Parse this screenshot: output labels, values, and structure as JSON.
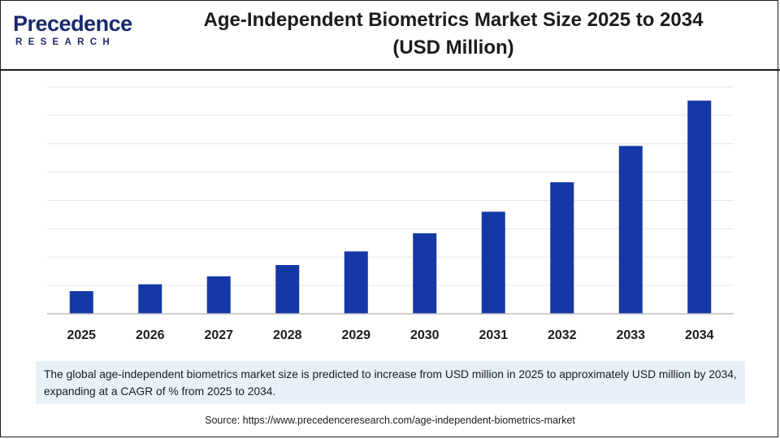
{
  "header": {
    "logo_text": "Precedence",
    "logo_subtext": "RESEARCH",
    "title_line1": "Age-Independent Biometrics Market Size 2025 to 2034",
    "title_line2": "(USD Million)"
  },
  "chart_data": {
    "type": "bar",
    "categories": [
      "2025",
      "2026",
      "2027",
      "2028",
      "2029",
      "2030",
      "2031",
      "2032",
      "2033",
      "2034"
    ],
    "values": [
      10,
      13,
      16.5,
      21.5,
      27.5,
      35.5,
      45,
      58,
      74,
      94
    ],
    "ylim": [
      0,
      100
    ],
    "grid": true,
    "bar_color": "#1438a6",
    "title": "",
    "xlabel": "",
    "ylabel": ""
  },
  "summary_text": "The global age-independent biometrics market size is predicted to increase from USD  million in 2025 to approximately USD  million by 2034, expanding at a CAGR of % from 2025 to 2034.",
  "source_text": "Source: https://www.precedenceresearch.com/age-independent-biometrics-market",
  "colors": {
    "brand": "#1a2a6c",
    "bar": "#1438a6",
    "summary_bg": "#e8f0fa"
  }
}
